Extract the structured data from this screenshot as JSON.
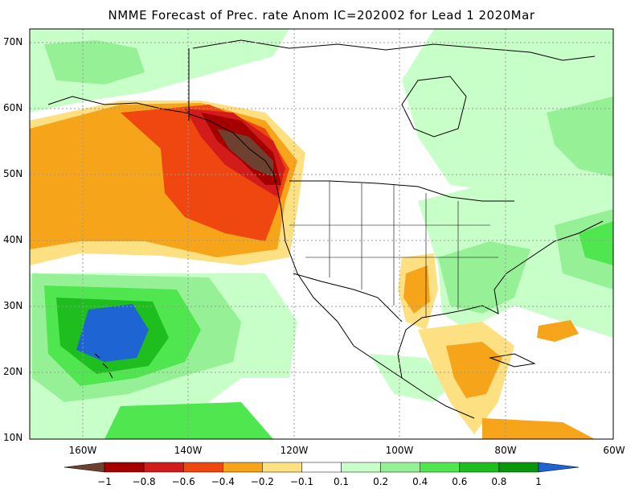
{
  "title": "NMME Forecast of Prec. rate Anom IC=202002 for Lead 1 2020Mar",
  "lat_labels": [
    "70N",
    "60N",
    "50N",
    "40N",
    "30N",
    "20N",
    "10N"
  ],
  "lon_labels": [
    "160W",
    "140W",
    "120W",
    "100W",
    "80W",
    "60W"
  ],
  "colorbar": {
    "labels": [
      "-1",
      "-0.8",
      "-0.6",
      "-0.4",
      "-0.2",
      "-0.1",
      "0.1",
      "0.2",
      "0.4",
      "0.6",
      "0.8",
      "1"
    ],
    "colors": [
      "#6e4030",
      "#a40000",
      "#d21c1c",
      "#f0460f",
      "#f6a41a",
      "#fde082",
      "#ffffff",
      "#c8ffc8",
      "#96f096",
      "#50e650",
      "#1ebe1e",
      "#0a960a",
      "#1e64d2"
    ]
  },
  "map_colors": {
    "land_outline": "#000000",
    "grid": "#9a9a9a"
  }
}
